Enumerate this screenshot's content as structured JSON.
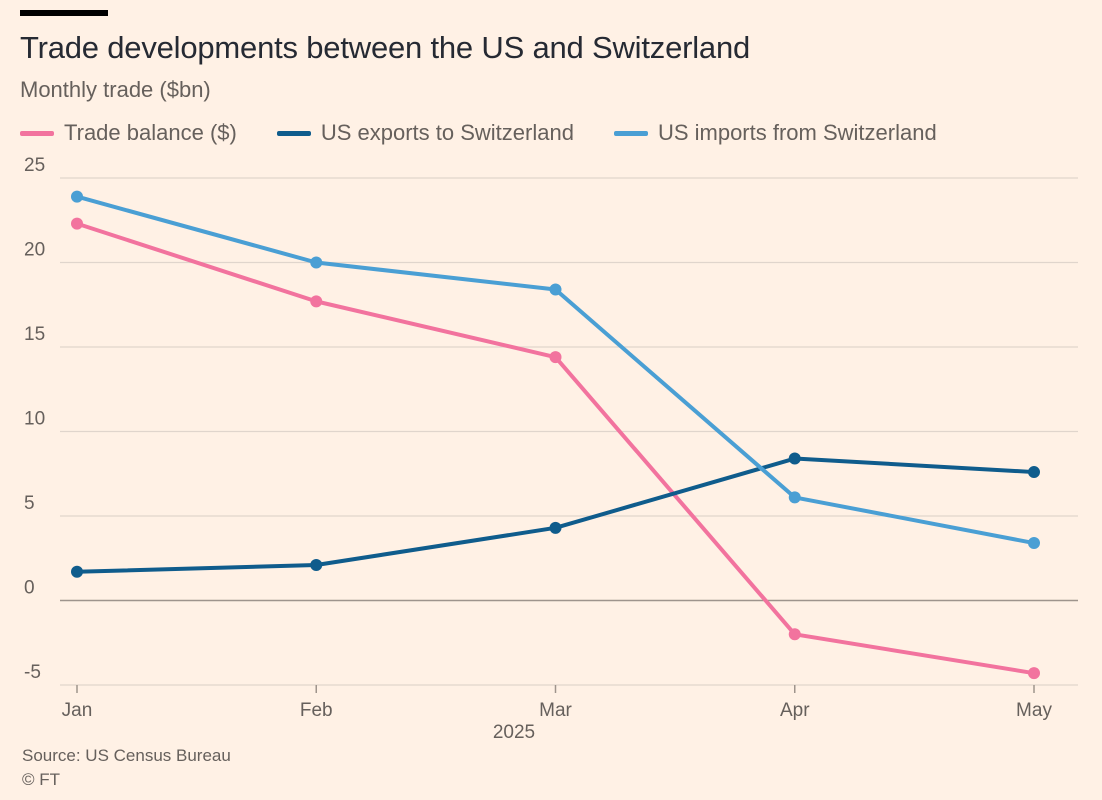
{
  "chart_data": {
    "type": "line",
    "title": "Trade developments between the US and Switzerland",
    "subtitle": "Monthly trade ($bn)",
    "x": [
      "Jan",
      "Feb",
      "Mar",
      "Apr",
      "May"
    ],
    "x_group_label": "2025",
    "ylim": [
      -5,
      25
    ],
    "yticks": [
      "25",
      "20",
      "15",
      "10",
      "5",
      "0",
      "-5"
    ],
    "grid": true,
    "legend_position": "top-left",
    "series": [
      {
        "name": "Trade balance ($)",
        "color": "#F2739E",
        "values": [
          22.3,
          17.7,
          14.4,
          -2.0,
          -4.3
        ]
      },
      {
        "name": "US exports to Switzerland",
        "color": "#0F5C8C",
        "values": [
          1.7,
          2.1,
          4.3,
          8.4,
          7.6
        ]
      },
      {
        "name": "US imports from Switzerland",
        "color": "#4A9FD4",
        "values": [
          23.9,
          20.0,
          18.4,
          6.1,
          3.4
        ]
      }
    ]
  },
  "footer": {
    "source": "Source: US Census Bureau",
    "copyright": "© FT"
  },
  "colors": {
    "background": "#FFF1E5",
    "gridline": "#E0D5CC",
    "zero_line": "#9E948C",
    "axis_text": "#66605C"
  }
}
